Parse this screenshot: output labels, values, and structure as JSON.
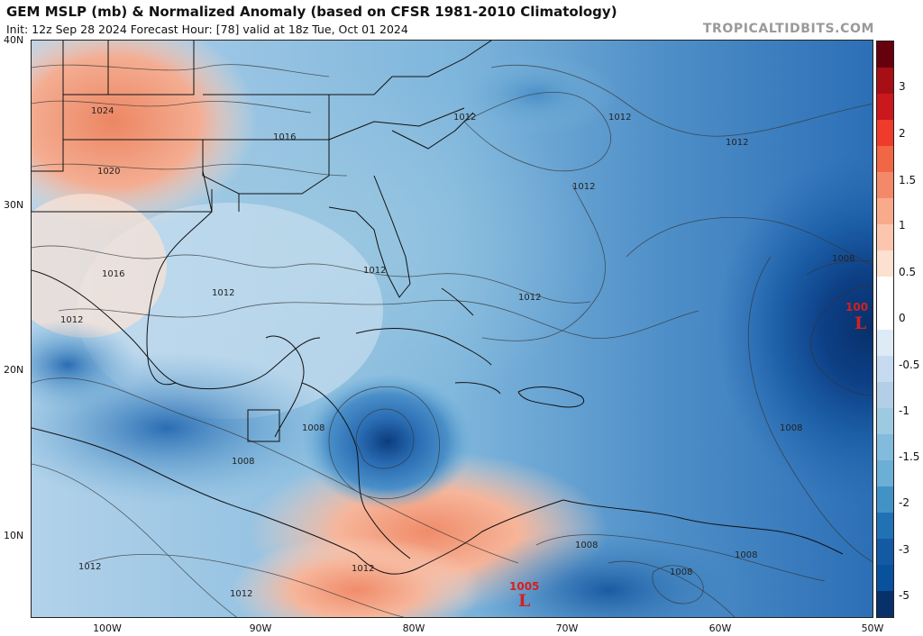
{
  "header": {
    "title": "GEM MSLP (mb) & Normalized Anomaly (based on CFSR 1981-2010 Climatology)",
    "subtitle": "Init: 12z Sep 28 2024   Forecast Hour: [78]   valid at 18z Tue, Oct 01 2024",
    "brand": "TROPICALTIDBITS.COM"
  },
  "axes": {
    "lat_labels": [
      "40N",
      "30N",
      "20N",
      "10N"
    ],
    "lon_labels": [
      "100W",
      "90W",
      "80W",
      "70W",
      "60W",
      "50W"
    ]
  },
  "colorbar": {
    "labels": [
      "3",
      "2",
      "1.5",
      "1",
      "0.5",
      "0",
      "-0.5",
      "-1",
      "-1.5",
      "-2",
      "-3",
      "-5"
    ],
    "colors": [
      "#67000d",
      "#a50f15",
      "#cb181d",
      "#ef3b2c",
      "#f16645",
      "#f4896a",
      "#f8aa8b",
      "#fbc6ad",
      "#fce0d0",
      "#ffffff",
      "#ffffff",
      "#deebf7",
      "#c6dbef",
      "#b2cfe7",
      "#9ecae1",
      "#82bbdb",
      "#6baed6",
      "#4292c6",
      "#2171b5",
      "#1459a3",
      "#08519c",
      "#08306b"
    ]
  },
  "isobar_labels": [
    "1024",
    "1020",
    "1016",
    "1016",
    "1012",
    "1012",
    "1012",
    "1012",
    "1012",
    "1012",
    "1012",
    "1012",
    "1012",
    "1012",
    "1008",
    "1008",
    "1008",
    "1008",
    "1008",
    "1008",
    "1008",
    "1012",
    "1012"
  ],
  "lows": [
    {
      "letter": "L",
      "value": "1005"
    },
    {
      "letter": "L",
      "value": "100"
    }
  ]
}
